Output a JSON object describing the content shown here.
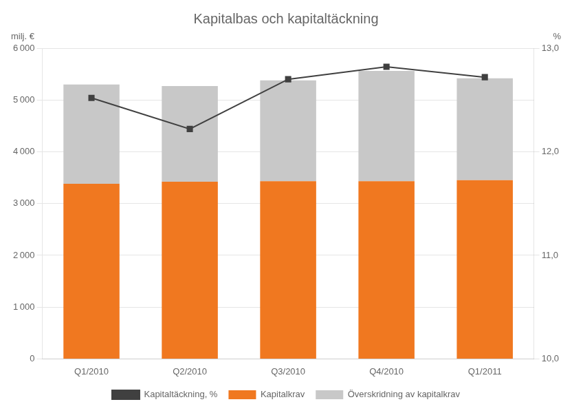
{
  "chart_data": {
    "type": "bar",
    "title": "Kapitalbas och kapitaltäckning",
    "ylabel": "milj. €",
    "y2label": "%",
    "categories": [
      "Q1/2010",
      "Q2/2010",
      "Q3/2010",
      "Q4/2010",
      "Q1/2011"
    ],
    "stacked": true,
    "grid": true,
    "legend": "bottom",
    "series": [
      {
        "name": "Kapitalkrav",
        "type": "bar",
        "color": "#F07820",
        "values": [
          3380,
          3420,
          3430,
          3430,
          3450
        ]
      },
      {
        "name": "Överskridning av kapitalkrav",
        "type": "bar",
        "color": "#C8C8C8",
        "values": [
          1920,
          1850,
          1950,
          2130,
          1970
        ]
      },
      {
        "name": "Kapitaltäckning, %",
        "type": "line",
        "axis": "y2",
        "color": "#404040",
        "marker": "square",
        "line_style": "solid",
        "values": [
          12.52,
          12.22,
          12.7,
          12.82,
          12.72
        ]
      }
    ],
    "ylim": [
      0,
      6000
    ],
    "yticks": [
      0,
      {
        "value": 1000,
        "label": "1 000"
      },
      {
        "value": 2000,
        "label": "2 000"
      },
      {
        "value": 3000,
        "label": "3 000"
      },
      {
        "value": 4000,
        "label": "4 000"
      },
      {
        "value": 5000,
        "label": "5 000"
      },
      {
        "value": 6000,
        "label": "6 000"
      }
    ],
    "y2lim": [
      10.0,
      13.0
    ],
    "y2ticks": [
      {
        "value": 10.0,
        "label": "10,0"
      },
      {
        "value": 11.0,
        "label": "11,0"
      },
      {
        "value": 12.0,
        "label": "12,0"
      },
      {
        "value": 13.0,
        "label": "13,0"
      }
    ]
  }
}
